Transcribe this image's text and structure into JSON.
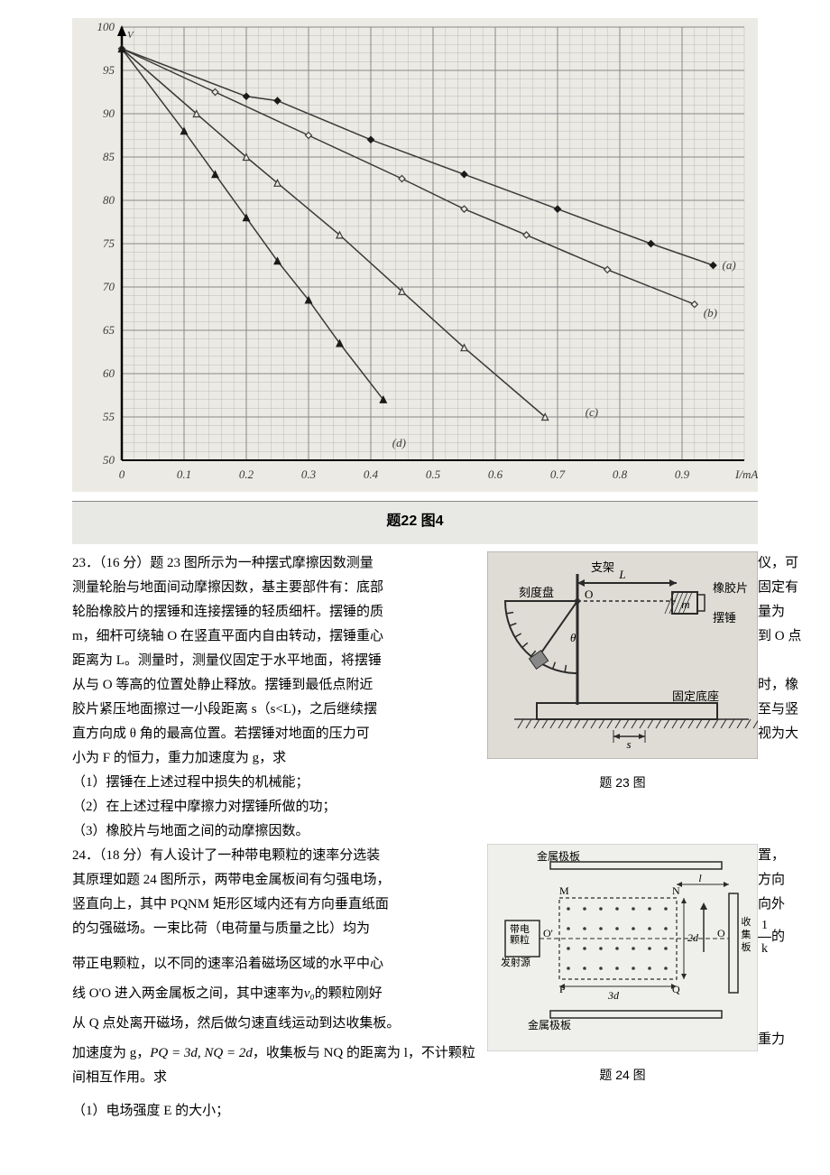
{
  "chart22": {
    "type": "scatter-line",
    "xlabel": "I/mA",
    "xlim": [
      0,
      1.0
    ],
    "xticks": [
      0,
      0.1,
      0.2,
      0.3,
      0.4,
      0.5,
      0.6,
      0.7,
      0.8,
      0.9
    ],
    "ylim": [
      50,
      100
    ],
    "yticks": [
      50,
      55,
      60,
      65,
      70,
      75,
      80,
      85,
      90,
      95,
      100
    ],
    "ytick_labels": [
      "0",
      "5",
      "0",
      "5",
      "0",
      "5",
      "0",
      "5",
      "0",
      "5",
      "0"
    ],
    "ytick_prefix_labels": [
      "5",
      "5",
      "6",
      "6",
      "7",
      "7",
      "8",
      "8",
      "9",
      "9",
      "10"
    ],
    "background_color": "#eceae4",
    "grid_color": "#888888",
    "minor_grid_color": "#bbbbb6",
    "axis_color": "#000000",
    "text_color": "#3a3a3a",
    "tick_fontsize": 13,
    "caption": "题22 图4",
    "series": [
      {
        "name": "a",
        "label": "(a)",
        "marker": "diamond-filled",
        "marker_color": "#1a1a1a",
        "marker_size": 7,
        "line_color": "#3a3a3a",
        "line_width": 1.5,
        "line_style": "solid",
        "points": [
          [
            0.0,
            97.5
          ],
          [
            0.2,
            92.0
          ],
          [
            0.25,
            91.5
          ],
          [
            0.4,
            87.0
          ],
          [
            0.55,
            83.0
          ],
          [
            0.7,
            79.0
          ],
          [
            0.85,
            75.0
          ],
          [
            0.95,
            72.5
          ]
        ],
        "label_xy": [
          0.95,
          72.5
        ]
      },
      {
        "name": "b",
        "label": "(b)",
        "marker": "diamond-open",
        "marker_color": "#3a3a3a",
        "marker_size": 7,
        "line_color": "#3a3a3a",
        "line_width": 1.5,
        "line_style": "solid",
        "points": [
          [
            0.0,
            97.5
          ],
          [
            0.15,
            92.5
          ],
          [
            0.3,
            87.5
          ],
          [
            0.45,
            82.5
          ],
          [
            0.55,
            79.0
          ],
          [
            0.65,
            76.0
          ],
          [
            0.78,
            72.0
          ],
          [
            0.92,
            68.0
          ]
        ],
        "label_xy": [
          0.92,
          67.0
        ]
      },
      {
        "name": "c",
        "label": "(c)",
        "marker": "triangle-open",
        "marker_color": "#3a3a3a",
        "marker_size": 7,
        "line_color": "#3a3a3a",
        "line_width": 1.5,
        "line_style": "solid",
        "points": [
          [
            0.0,
            97.5
          ],
          [
            0.12,
            90.0
          ],
          [
            0.2,
            85.0
          ],
          [
            0.25,
            82.0
          ],
          [
            0.35,
            76.0
          ],
          [
            0.45,
            69.5
          ],
          [
            0.55,
            63.0
          ],
          [
            0.68,
            55.0
          ]
        ],
        "label_xy": [
          0.73,
          55.5
        ]
      },
      {
        "name": "d",
        "label": "(d)",
        "marker": "triangle-filled",
        "marker_color": "#1a1a1a",
        "marker_size": 7,
        "line_color": "#3a3a3a",
        "line_width": 1.5,
        "line_style": "solid",
        "points": [
          [
            0.0,
            97.5
          ],
          [
            0.1,
            88.0
          ],
          [
            0.15,
            83.0
          ],
          [
            0.2,
            78.0
          ],
          [
            0.25,
            73.0
          ],
          [
            0.3,
            68.5
          ],
          [
            0.35,
            63.5
          ],
          [
            0.42,
            57.0
          ]
        ],
        "label_xy": [
          0.42,
          52.0
        ]
      }
    ]
  },
  "q23": {
    "header": "23．（16 分）题 23 图所示为一种摆式摩擦因数测量",
    "r1": "仪，可",
    "l2": "测量轮胎与地面间动摩擦因数，基主要部件有：底部",
    "r2": "固定有",
    "l3": "轮胎橡胶片的摆锤和连接摆锤的轻质细杆。摆锤的质",
    "r3": "量为",
    "l4": "m，细杆可绕轴 O 在竖直平面内自由转动，摆锤重心",
    "r4": "到 O 点",
    "l5": "距离为 L。测量时，测量仪固定于水平地面，将摆锤",
    "l6": "从与 O 等高的位置处静止释放。摆锤到最低点附近",
    "r6": "时，橡",
    "l7": "胶片紧压地面擦过一小段距离 s（s<L)，之后继续摆",
    "r7": "至与竖",
    "l8": "直方向成 θ 角的最高位置。若摆锤对地面的压力可",
    "r8": "视为大",
    "l9": "小为 F 的恒力，重力加速度为 g，求",
    "sub1": "（1）摆锤在上述过程中损失的机械能；",
    "sub2": "（2）在上述过程中摩擦力对摆锤所做的功；",
    "sub3": "（3）橡胶片与地面之间的动摩擦因数。",
    "figure": {
      "caption": "题 23 图",
      "labels": {
        "bracket": "支架",
        "scale": "刻度盘",
        "rubber": "橡胶片",
        "hammer": "摆锤",
        "base": "固定底座",
        "L": "L",
        "O": "O",
        "m": "m",
        "theta": "θ",
        "s": "s"
      },
      "bg_color": "#dedcd4",
      "line_color": "#2a2a2a",
      "label_fontsize": 13
    }
  },
  "q24": {
    "header": "24．（18 分）有人设计了一种带电颗粒的速率分选装",
    "r1": "置，",
    "l2": "其原理如题 24 图所示，两带电金属板间有匀强电场，",
    "r2": "方向",
    "l3": "竖直向上，其中 PQNM 矩形区域内还有方向垂直纸面",
    "r3": "向外",
    "l4": "的匀强磁场。一束比荷（电荷量与质量之比）均为",
    "r4_frac_num": "1",
    "r4_frac_den": "k",
    "r4_suffix": "的",
    "l5": "带正电颗粒，以不同的速率沿着磁场区域的水平中心",
    "l6a": "线 O'O 进入两金属板之间，其中速率为",
    "v0": "v₀",
    "l6b": "的颗粒刚好",
    "l7": "从 Q 点处离开磁场，然后做匀速直线运动到达收集板。",
    "r7": "重力",
    "l8a": "加速度为 g，",
    "eq": "PQ = 3d, NQ = 2d",
    "l8b": "，收集板与 NQ 的距离为 l，不计颗粒间相互作用。求",
    "sub1": "（1）电场强度 E 的大小；",
    "figure": {
      "caption": "题 24 图",
      "labels": {
        "top_plate": "金属极板",
        "bottom_plate": "金属极板",
        "source1": "带电",
        "source2": "颗粒",
        "source3": "发射源",
        "collector": "收集板",
        "M": "M",
        "N": "N",
        "P": "P",
        "Q": "Q",
        "Op": "O'",
        "O": "O",
        "l": "l",
        "d2": "2d",
        "d3": "3d"
      },
      "bg_color": "#efefeb",
      "line_color": "#2a2a2a",
      "dot_color": "#3a3a3a",
      "label_fontsize": 12
    }
  }
}
